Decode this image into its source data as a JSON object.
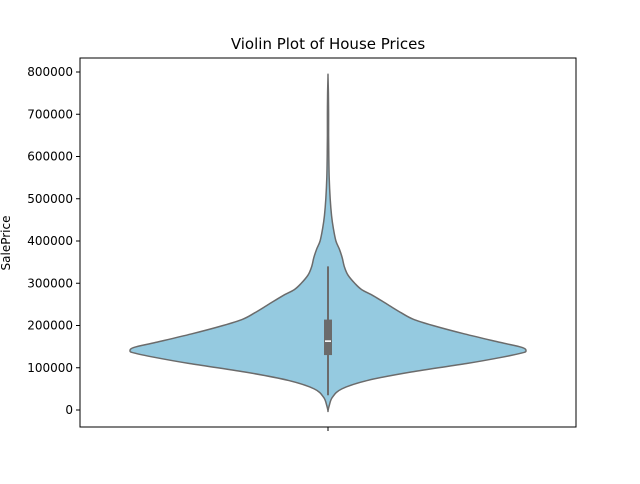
{
  "chart_data": {
    "type": "violin",
    "title": "Violin Plot of House Prices",
    "xlabel": "",
    "ylabel": "SalePrice",
    "ylim": [
      -40000,
      830000
    ],
    "yticks": [
      0,
      100000,
      200000,
      300000,
      400000,
      500000,
      600000,
      700000,
      800000
    ],
    "ytick_labels": [
      "0",
      "100000",
      "200000",
      "300000",
      "400000",
      "500000",
      "600000",
      "700000",
      "800000"
    ],
    "grid": false,
    "legend": "none",
    "series": [
      {
        "color": "#95cae0",
        "edge_color": "#6b6b6b",
        "density_profile": [
          {
            "y": -2000,
            "d": 0.0
          },
          {
            "y": 10000,
            "d": 0.006
          },
          {
            "y": 30000,
            "d": 0.022
          },
          {
            "y": 50000,
            "d": 0.07
          },
          {
            "y": 70000,
            "d": 0.2
          },
          {
            "y": 90000,
            "d": 0.42
          },
          {
            "y": 110000,
            "d": 0.7
          },
          {
            "y": 125000,
            "d": 0.88
          },
          {
            "y": 135000,
            "d": 0.98
          },
          {
            "y": 140000,
            "d": 1.0
          },
          {
            "y": 148000,
            "d": 0.98
          },
          {
            "y": 160000,
            "d": 0.87
          },
          {
            "y": 180000,
            "d": 0.69
          },
          {
            "y": 200000,
            "d": 0.53
          },
          {
            "y": 215000,
            "d": 0.43
          },
          {
            "y": 230000,
            "d": 0.37
          },
          {
            "y": 250000,
            "d": 0.3
          },
          {
            "y": 270000,
            "d": 0.23
          },
          {
            "y": 285000,
            "d": 0.17
          },
          {
            "y": 300000,
            "d": 0.135
          },
          {
            "y": 320000,
            "d": 0.1
          },
          {
            "y": 340000,
            "d": 0.082
          },
          {
            "y": 360000,
            "d": 0.072
          },
          {
            "y": 380000,
            "d": 0.058
          },
          {
            "y": 400000,
            "d": 0.04
          },
          {
            "y": 430000,
            "d": 0.027
          },
          {
            "y": 460000,
            "d": 0.018
          },
          {
            "y": 500000,
            "d": 0.011
          },
          {
            "y": 550000,
            "d": 0.006
          },
          {
            "y": 600000,
            "d": 0.004
          },
          {
            "y": 650000,
            "d": 0.003
          },
          {
            "y": 700000,
            "d": 0.003
          },
          {
            "y": 750000,
            "d": 0.002
          },
          {
            "y": 790000,
            "d": 0.0
          }
        ],
        "max_half_width": 198,
        "quartiles": {
          "q1": 130000,
          "median": 163000,
          "q3": 214000
        },
        "whiskers": [
          34900,
          340000
        ]
      }
    ]
  }
}
